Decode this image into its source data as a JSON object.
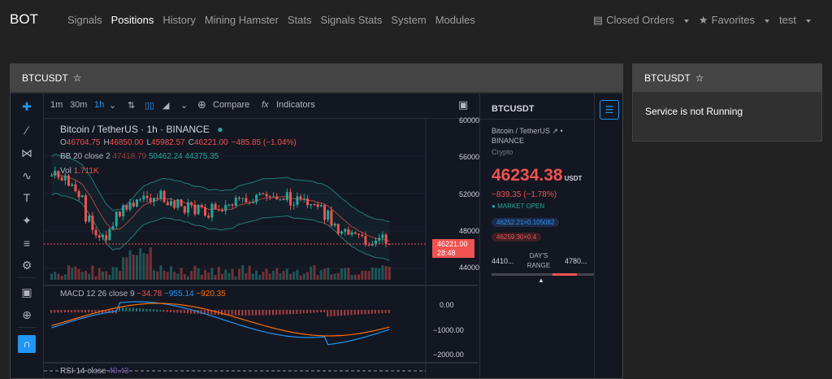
{
  "nav": {
    "brand": "BOT",
    "links": [
      "Signals",
      "Positions",
      "History",
      "Mining Hamster",
      "Stats",
      "Signals Stats",
      "System",
      "Modules"
    ],
    "active_index": 1,
    "right": {
      "closed_orders": "Closed Orders",
      "favorites": "Favorites",
      "user": "test"
    }
  },
  "panel_main": {
    "title": "BTCUSDT"
  },
  "panel_side": {
    "title": "BTCUSDT",
    "message": "Service is not Running"
  },
  "toolbar": {
    "intervals": [
      "1m",
      "30m",
      "1h"
    ],
    "active_interval": "1h",
    "compare": "Compare",
    "indicators": "Indicators"
  },
  "chart_legend": {
    "symbol": "Bitcoin / TetherUS · 1h · BINANCE",
    "ohlc": [
      {
        "k": "O",
        "v": "46704.75"
      },
      {
        "k": "H",
        "v": "46850.00"
      },
      {
        "k": "L",
        "v": "45982.57"
      },
      {
        "k": "C",
        "v": "46221.00"
      },
      {
        "k": "",
        "v": "−485.85 (−1.04%)"
      }
    ],
    "bb": {
      "label": "BB 20 close 2",
      "v1": "47418.79",
      "v2": "50462.24",
      "v3": "44375.35"
    },
    "vol": {
      "label": "Vol",
      "v": "1.711K"
    },
    "macd": {
      "label": "MACD 12 26 close 9",
      "v1": "−34.78",
      "v2": "−955.14",
      "v3": "−920.35"
    },
    "rsi": {
      "label": "RSI 14 close",
      "v": "40.43"
    }
  },
  "price_axis": [
    "60000.00",
    "56000.00",
    "52000.00",
    "48000.00",
    "44000.00"
  ],
  "price_tag": {
    "price": "46221.00",
    "countdown": "28:48"
  },
  "macd_axis": [
    "0.00",
    "−1000.00",
    "−2000.00"
  ],
  "quote": {
    "symbol": "BTCUSDT",
    "name": "Bitcoin / TetherUS",
    "exchange": "BINANCE",
    "type": "Crypto",
    "price": "46234.38",
    "currency": "USDT",
    "change": "−839.35 (−1.78%)",
    "market": "MARKET OPEN",
    "bid": "46252.21×0.105082",
    "ask": "46259.30×0.4",
    "range_low": "4410...",
    "range_label": "DAY'S RANGE",
    "range_high": "4780..."
  },
  "colors": {
    "up": "#26a69a",
    "down": "#ef5350",
    "accent": "#2196f3",
    "nav_bg": "#222222",
    "panel_head": "#444444"
  }
}
